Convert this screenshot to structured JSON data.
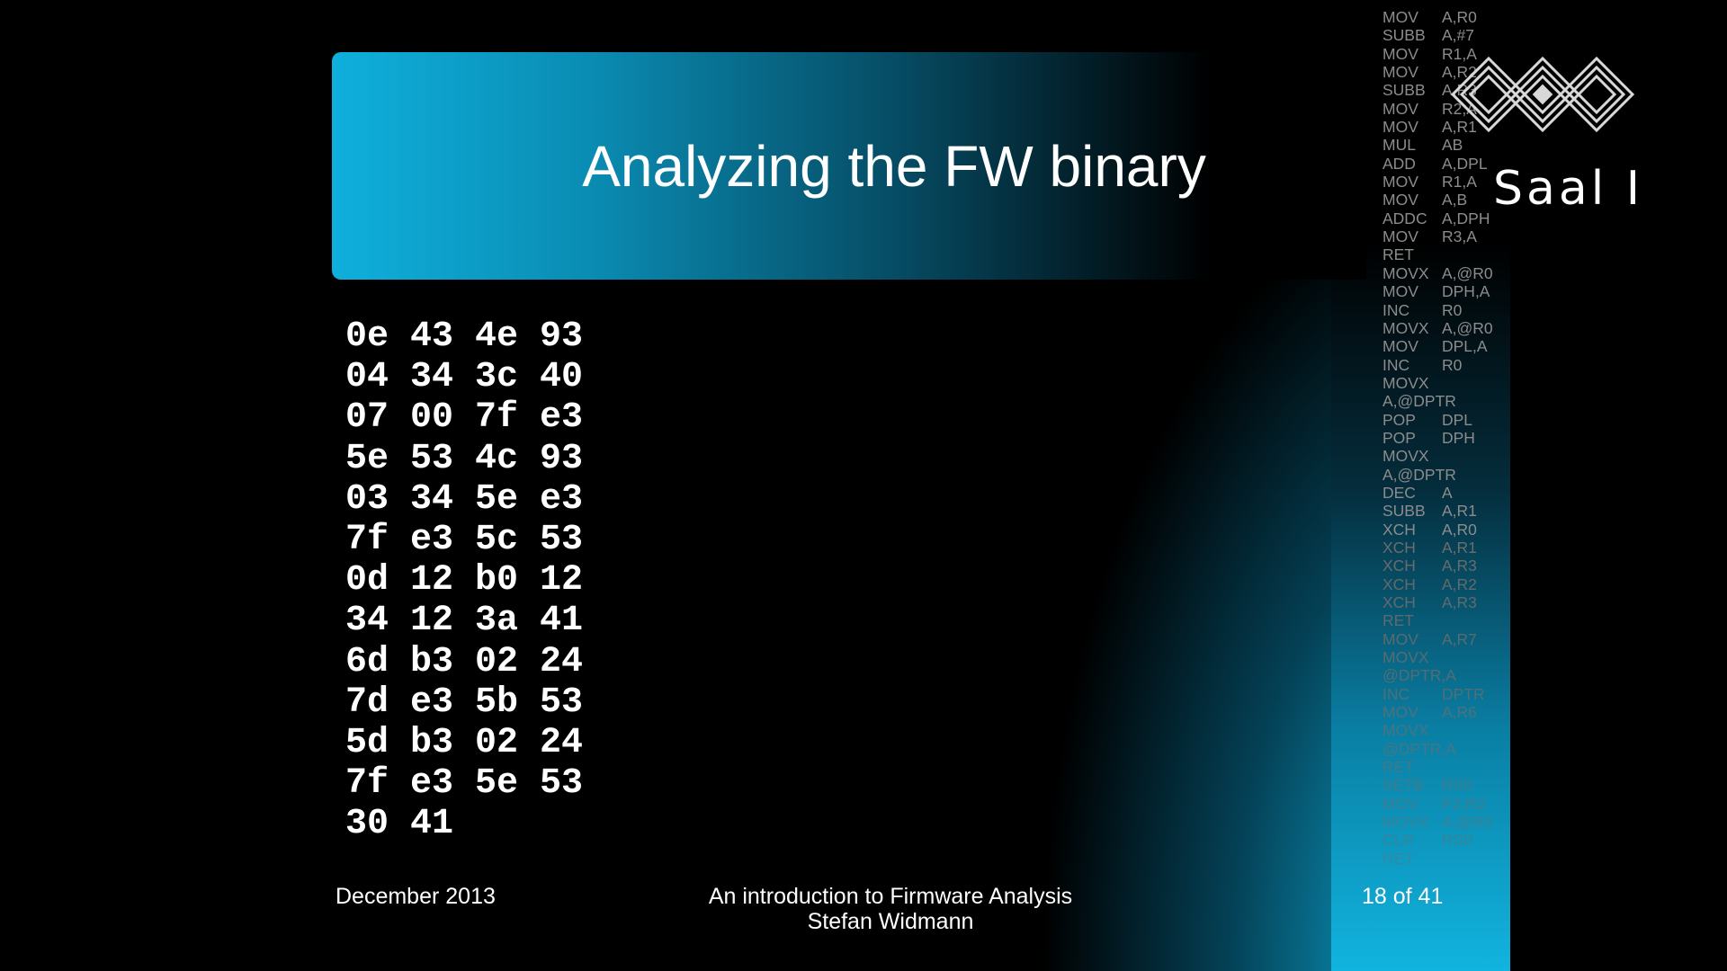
{
  "slide": {
    "title": "Analyzing the FW binary",
    "hex_lines": [
      "0e 43 4e 93",
      "04 34 3c 40",
      "07 00 7f e3",
      "5e 53 4c 93",
      "03 34 5e e3",
      "7f e3 5c 53",
      "0d 12 b0 12",
      "34 12 3a 41",
      "6d b3 02 24",
      "7d e3 5b 53",
      "5d b3 02 24",
      "7f e3 5e 53",
      "30 41"
    ],
    "footer": {
      "date": "December 2013",
      "title_line": "An introduction to Firmware Analysis",
      "author": "Stefan Widmann",
      "page": "18 of 41"
    }
  },
  "sidebar": {
    "asm": [
      [
        "MOV",
        "A,R0"
      ],
      [
        "SUBB",
        "A,#7"
      ],
      [
        "MOV",
        "R1,A"
      ],
      [
        "MOV",
        "A,R2"
      ],
      [
        "SUBB",
        "A,R3"
      ],
      [
        "MOV",
        "R2,A"
      ],
      [
        "MOV",
        "A,R1"
      ],
      [
        "MUL",
        "AB"
      ],
      [
        "ADD",
        "A,DPL"
      ],
      [
        "MOV",
        "R1,A"
      ],
      [
        "MOV",
        "A,B"
      ],
      [
        "ADDC",
        "A,DPH"
      ],
      [
        "MOV",
        "R3,A"
      ],
      [
        "RET",
        ""
      ],
      [
        "MOVX",
        "A,@R0"
      ],
      [
        "MOV",
        "DPH,A"
      ],
      [
        "INC",
        "R0"
      ],
      [
        "MOVX",
        "A,@R0"
      ],
      [
        "MOV",
        "DPL,A"
      ],
      [
        "INC",
        "R0"
      ],
      [
        "MOVX",
        ""
      ],
      [
        "A,@DPTR",
        ""
      ],
      [
        "POP",
        "DPL"
      ],
      [
        "POP",
        "DPH"
      ],
      [
        "MOVX",
        ""
      ],
      [
        "A,@DPTR",
        ""
      ],
      [
        "DEC",
        "A"
      ],
      [
        "SUBB",
        "A,R1"
      ],
      [
        "XCH",
        "A,R0"
      ],
      [
        "XCH",
        "A,R1"
      ],
      [
        "XCH",
        "A,R3"
      ],
      [
        "XCH",
        "A,R2"
      ],
      [
        "XCH",
        "A,R3"
      ],
      [
        "RET",
        ""
      ],
      [
        "MOV",
        "A,R7"
      ],
      [
        "MOVX",
        ""
      ],
      [
        "@DPTR,A",
        ""
      ],
      [
        "INC",
        "DPTR"
      ],
      [
        "MOV",
        "A,R6"
      ],
      [
        "MOVX",
        ""
      ],
      [
        "@DPTR,A",
        ""
      ],
      [
        "RET",
        ""
      ],
      [
        "SETB",
        "RS0"
      ],
      [
        "MOV",
        "P2,R2"
      ],
      [
        "MOVX",
        "A,@R0"
      ],
      [
        "CLR",
        "RS0"
      ],
      [
        "RET",
        ""
      ]
    ],
    "logo_text": "Saal I"
  },
  "colors": {
    "accent": "#0fb5e0",
    "asm_text": "#8c8c8c",
    "background": "#000000"
  }
}
